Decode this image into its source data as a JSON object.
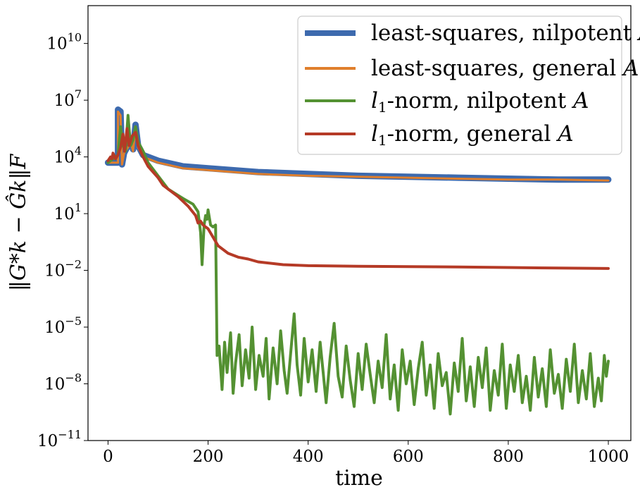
{
  "chart_data": {
    "type": "line",
    "title": "",
    "xlabel": "time",
    "ylabel": "‖G*k − Ĝk‖F",
    "xlim": [
      -40,
      1045
    ],
    "ylog_range": [
      -11,
      12
    ],
    "x_ticks": [
      0,
      200,
      400,
      600,
      800,
      1000
    ],
    "x_tick_labels": [
      "0",
      "200",
      "400",
      "600",
      "800",
      "1000"
    ],
    "y_ticks": [
      {
        "exp": 10,
        "base": "10",
        "sup": "10"
      },
      {
        "exp": 7,
        "base": "10",
        "sup": "7"
      },
      {
        "exp": 4,
        "base": "10",
        "sup": "4"
      },
      {
        "exp": 1,
        "base": "10",
        "sup": "1"
      },
      {
        "exp": -2,
        "base": "10",
        "sup": "−2"
      },
      {
        "exp": -5,
        "base": "10",
        "sup": "−5"
      },
      {
        "exp": -8,
        "base": "10",
        "sup": "−8"
      },
      {
        "exp": -11,
        "base": "10",
        "sup": "−11"
      }
    ],
    "legend_position": "top-right",
    "series": [
      {
        "name": "least-squares, nilpotent A",
        "label_text": "least-squares, nilpotent ",
        "label_var": "A",
        "color": "#3d6aae",
        "width": 9,
        "legend_width": 8,
        "points": [
          [
            0,
            3.7
          ],
          [
            20,
            3.7
          ],
          [
            20,
            6.5
          ],
          [
            25,
            6.4
          ],
          [
            28,
            3.6
          ],
          [
            32,
            4.2
          ],
          [
            40,
            4.6
          ],
          [
            45,
            4.9
          ],
          [
            50,
            4.4
          ],
          [
            55,
            5.7
          ],
          [
            60,
            4.6
          ],
          [
            70,
            4.1
          ],
          [
            100,
            3.8
          ],
          [
            150,
            3.5
          ],
          [
            200,
            3.4
          ],
          [
            300,
            3.2
          ],
          [
            400,
            3.1
          ],
          [
            500,
            3.0
          ],
          [
            600,
            2.95
          ],
          [
            700,
            2.9
          ],
          [
            800,
            2.85
          ],
          [
            900,
            2.8
          ],
          [
            1000,
            2.8
          ]
        ]
      },
      {
        "name": "least-squares, general A",
        "label_text": "least-squares, general ",
        "label_var": "A",
        "color": "#e07f2c",
        "width": 3,
        "legend_width": 4,
        "points": [
          [
            0,
            3.7
          ],
          [
            20,
            3.7
          ],
          [
            20,
            6.4
          ],
          [
            25,
            6.2
          ],
          [
            28,
            3.6
          ],
          [
            32,
            4.2
          ],
          [
            40,
            4.5
          ],
          [
            45,
            4.8
          ],
          [
            50,
            4.3
          ],
          [
            55,
            5.6
          ],
          [
            60,
            4.5
          ],
          [
            70,
            4.0
          ],
          [
            100,
            3.7
          ],
          [
            150,
            3.4
          ],
          [
            200,
            3.3
          ],
          [
            300,
            3.1
          ],
          [
            400,
            3.0
          ],
          [
            500,
            2.95
          ],
          [
            600,
            2.9
          ],
          [
            700,
            2.85
          ],
          [
            800,
            2.8
          ],
          [
            900,
            2.8
          ],
          [
            1000,
            2.75
          ]
        ]
      },
      {
        "name": "l1-norm, nilpotent A",
        "label_text": "-norm, nilpotent ",
        "label_var": "A",
        "label_prefix": "l",
        "label_sub": "1",
        "color": "#549132",
        "width": 4,
        "legend_width": 4,
        "points": [
          [
            0,
            3.7
          ],
          [
            10,
            3.9
          ],
          [
            20,
            4.1
          ],
          [
            25,
            5.6
          ],
          [
            30,
            4.6
          ],
          [
            35,
            4.3
          ],
          [
            40,
            6.2
          ],
          [
            45,
            4.6
          ],
          [
            50,
            4.9
          ],
          [
            55,
            5.6
          ],
          [
            60,
            4.8
          ],
          [
            70,
            4.3
          ],
          [
            80,
            3.7
          ],
          [
            100,
            3.0
          ],
          [
            120,
            2.3
          ],
          [
            150,
            1.8
          ],
          [
            170,
            1.5
          ],
          [
            180,
            1.1
          ],
          [
            185,
            0.0
          ],
          [
            188,
            -1.7
          ],
          [
            192,
            0.4
          ],
          [
            195,
            0.9
          ],
          [
            198,
            0.7
          ],
          [
            200,
            1.2
          ],
          [
            205,
            0.4
          ],
          [
            210,
            0.3
          ],
          [
            215,
            0.4
          ],
          [
            218,
            -6.5
          ],
          [
            222,
            -6.0
          ],
          [
            228,
            -8.3
          ],
          [
            233,
            -5.8
          ],
          [
            238,
            -7.4
          ],
          [
            245,
            -5.3
          ],
          [
            250,
            -8.5
          ],
          [
            255,
            -6.9
          ],
          [
            262,
            -5.4
          ],
          [
            268,
            -8.1
          ],
          [
            275,
            -6.2
          ],
          [
            282,
            -7.7
          ],
          [
            288,
            -5.0
          ],
          [
            295,
            -8.3
          ],
          [
            302,
            -6.5
          ],
          [
            310,
            -7.6
          ],
          [
            316,
            -5.6
          ],
          [
            322,
            -8.8
          ],
          [
            330,
            -6.1
          ],
          [
            338,
            -8.0
          ],
          [
            345,
            -5.2
          ],
          [
            352,
            -7.3
          ],
          [
            358,
            -8.5
          ],
          [
            365,
            -6.4
          ],
          [
            372,
            -4.3
          ],
          [
            378,
            -7.0
          ],
          [
            385,
            -8.6
          ],
          [
            392,
            -5.6
          ],
          [
            400,
            -7.9
          ],
          [
            408,
            -6.2
          ],
          [
            416,
            -8.4
          ],
          [
            424,
            -5.8
          ],
          [
            430,
            -7.4
          ],
          [
            436,
            -9.0
          ],
          [
            444,
            -6.6
          ],
          [
            452,
            -4.8
          ],
          [
            460,
            -7.6
          ],
          [
            468,
            -8.7
          ],
          [
            476,
            -6.0
          ],
          [
            484,
            -7.8
          ],
          [
            492,
            -9.2
          ],
          [
            500,
            -6.4
          ],
          [
            508,
            -8.3
          ],
          [
            516,
            -5.9
          ],
          [
            524,
            -7.5
          ],
          [
            532,
            -9.0
          ],
          [
            540,
            -6.8
          ],
          [
            548,
            -8.2
          ],
          [
            556,
            -5.4
          ],
          [
            564,
            -8.8
          ],
          [
            572,
            -7.0
          ],
          [
            580,
            -9.4
          ],
          [
            588,
            -6.2
          ],
          [
            596,
            -8.0
          ],
          [
            604,
            -6.8
          ],
          [
            612,
            -9.1
          ],
          [
            620,
            -7.2
          ],
          [
            628,
            -5.8
          ],
          [
            636,
            -8.6
          ],
          [
            644,
            -7.0
          ],
          [
            652,
            -9.3
          ],
          [
            660,
            -6.4
          ],
          [
            668,
            -8.1
          ],
          [
            676,
            -7.4
          ],
          [
            684,
            -9.6
          ],
          [
            692,
            -6.9
          ],
          [
            700,
            -8.4
          ],
          [
            708,
            -5.6
          ],
          [
            716,
            -8.9
          ],
          [
            724,
            -7.1
          ],
          [
            732,
            -9.2
          ],
          [
            740,
            -6.6
          ],
          [
            748,
            -8.2
          ],
          [
            756,
            -6.1
          ],
          [
            764,
            -9.4
          ],
          [
            772,
            -7.3
          ],
          [
            780,
            -8.6
          ],
          [
            788,
            -5.9
          ],
          [
            796,
            -9.3
          ],
          [
            804,
            -7.0
          ],
          [
            812,
            -8.4
          ],
          [
            820,
            -6.5
          ],
          [
            828,
            -9.0
          ],
          [
            836,
            -7.6
          ],
          [
            844,
            -9.4
          ],
          [
            852,
            -6.6
          ],
          [
            860,
            -8.7
          ],
          [
            868,
            -7.2
          ],
          [
            876,
            -9.2
          ],
          [
            884,
            -6.2
          ],
          [
            892,
            -8.5
          ],
          [
            900,
            -7.5
          ],
          [
            908,
            -9.3
          ],
          [
            916,
            -6.7
          ],
          [
            924,
            -8.4
          ],
          [
            932,
            -5.9
          ],
          [
            940,
            -9.0
          ],
          [
            948,
            -7.3
          ],
          [
            956,
            -8.8
          ],
          [
            964,
            -6.4
          ],
          [
            972,
            -9.2
          ],
          [
            980,
            -7.7
          ],
          [
            986,
            -8.9
          ],
          [
            992,
            -6.5
          ],
          [
            996,
            -7.6
          ],
          [
            1000,
            -6.8
          ]
        ]
      },
      {
        "name": "l1-norm, general A",
        "label_text": "-norm, general ",
        "label_var": "A",
        "label_prefix": "l",
        "label_sub": "1",
        "color": "#b53a26",
        "width": 4,
        "legend_width": 4,
        "points": [
          [
            0,
            3.8
          ],
          [
            5,
            4.0
          ],
          [
            8,
            3.9
          ],
          [
            10,
            4.2
          ],
          [
            15,
            3.9
          ],
          [
            20,
            4.1
          ],
          [
            25,
            4.5
          ],
          [
            30,
            5.2
          ],
          [
            33,
            4.3
          ],
          [
            38,
            5.5
          ],
          [
            42,
            4.6
          ],
          [
            48,
            5.1
          ],
          [
            55,
            5.3
          ],
          [
            60,
            4.6
          ],
          [
            70,
            4.0
          ],
          [
            80,
            3.5
          ],
          [
            100,
            2.9
          ],
          [
            110,
            2.5
          ],
          [
            120,
            2.3
          ],
          [
            140,
            1.9
          ],
          [
            160,
            1.4
          ],
          [
            175,
            0.9
          ],
          [
            180,
            0.5
          ],
          [
            185,
            0.6
          ],
          [
            190,
            0.4
          ],
          [
            200,
            0.2
          ],
          [
            220,
            -0.7
          ],
          [
            240,
            -1.1
          ],
          [
            260,
            -1.3
          ],
          [
            280,
            -1.4
          ],
          [
            300,
            -1.55
          ],
          [
            350,
            -1.7
          ],
          [
            400,
            -1.75
          ],
          [
            500,
            -1.78
          ],
          [
            600,
            -1.8
          ],
          [
            700,
            -1.82
          ],
          [
            800,
            -1.85
          ],
          [
            900,
            -1.88
          ],
          [
            1000,
            -1.9
          ]
        ]
      }
    ]
  }
}
